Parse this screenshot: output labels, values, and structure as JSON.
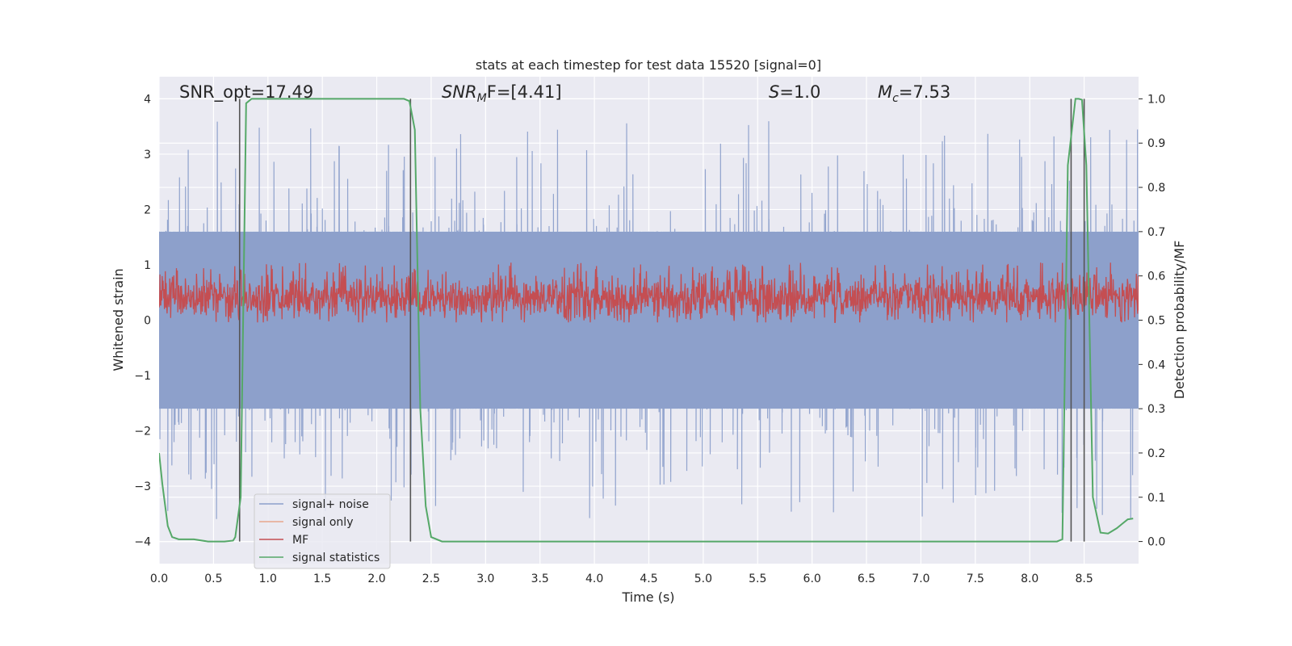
{
  "chart_data": {
    "type": "line",
    "title": "stats at each timestep for test data 15520 [signal=0]",
    "xlabel": "Time (s)",
    "ylabel": "Whitened strain",
    "ylabel_right": "Detection probability/MF",
    "xlim": [
      0.0,
      9.0
    ],
    "ylim": [
      -4.4,
      4.4
    ],
    "ylim_right": [
      -0.05,
      1.05
    ],
    "x_ticks": [
      0.0,
      0.5,
      1.0,
      1.5,
      2.0,
      2.5,
      3.0,
      3.5,
      4.0,
      4.5,
      5.0,
      5.5,
      6.0,
      6.5,
      7.0,
      7.5,
      8.0,
      8.5
    ],
    "x_tick_labels": [
      "0.0",
      "0.5",
      "1.0",
      "1.5",
      "2.0",
      "2.5",
      "3.0",
      "3.5",
      "4.0",
      "4.5",
      "5.0",
      "5.5",
      "6.0",
      "6.5",
      "7.0",
      "7.5",
      "8.0",
      "8.5"
    ],
    "y_ticks": [
      4,
      3,
      2,
      1,
      0,
      -1,
      -2,
      -3,
      -4
    ],
    "y_tick_labels": [
      "4",
      "3",
      "2",
      "1",
      "0",
      "−1",
      "−2",
      "−3",
      "−4"
    ],
    "y_ticks_right": [
      1.0,
      0.9,
      0.8,
      0.7,
      0.6,
      0.5,
      0.4,
      0.3,
      0.2,
      0.1,
      0.0
    ],
    "y_tick_labels_right": [
      "1.0",
      "0.9",
      "0.8",
      "0.7",
      "0.6",
      "0.5",
      "0.4",
      "0.3",
      "0.2",
      "0.1",
      "0.0"
    ],
    "grid": true,
    "legend_position": "lower-left",
    "annotations": {
      "snr_opt": "SNR_opt=17.49",
      "snr_mf_main": "SNR",
      "snr_mf_sub": "M",
      "snr_mf_rest": "F=[4.41]",
      "s_main": "S",
      "s_rest": "=1.0",
      "mc_main": "M",
      "mc_sub": "c",
      "mc_rest": "=7.53"
    },
    "series": [
      {
        "name": "signal+ noise",
        "color": "#8da0cb",
        "axis": "left",
        "description_values": {
          "core_band": [
            -1.6,
            1.6
          ],
          "peak_max": 3.64,
          "peak_min": -4.0
        }
      },
      {
        "name": "signal only",
        "color": "#e8a68c",
        "axis": "left",
        "x": [],
        "y": []
      },
      {
        "name": "MF",
        "color": "#c44e52",
        "axis": "right",
        "description_values": {
          "typical_range": [
            0.5,
            0.6
          ],
          "peak_max": 0.63
        }
      },
      {
        "name": "signal statistics",
        "color": "#55a868",
        "axis": "right",
        "x": [
          0.0,
          0.03,
          0.08,
          0.12,
          0.18,
          0.25,
          0.32,
          0.45,
          0.52,
          0.6,
          0.68,
          0.7,
          0.75,
          0.8,
          0.85,
          0.95,
          1.2,
          2.0,
          2.25,
          2.3,
          2.35,
          2.4,
          2.45,
          2.5,
          2.6,
          3.0,
          5.0,
          7.0,
          8.0,
          8.25,
          8.3,
          8.35,
          8.42,
          8.45,
          8.48,
          8.52,
          8.58,
          8.65,
          8.72,
          8.8,
          8.85,
          8.9,
          8.95
        ],
        "y": [
          0.2,
          0.13,
          0.035,
          0.01,
          0.005,
          0.005,
          0.005,
          0.0,
          0.0,
          0.0,
          0.002,
          0.01,
          0.1,
          0.99,
          1.0,
          1.0,
          1.0,
          1.0,
          1.0,
          0.995,
          0.93,
          0.3,
          0.08,
          0.01,
          0.0,
          0.0,
          0.0,
          0.0,
          0.0,
          0.0,
          0.005,
          0.85,
          1.0,
          1.0,
          0.998,
          0.85,
          0.1,
          0.02,
          0.018,
          0.03,
          0.04,
          0.05,
          0.052
        ]
      }
    ],
    "vertical_markers_x": [
      0.74,
      2.31,
      8.38,
      8.5
    ]
  }
}
